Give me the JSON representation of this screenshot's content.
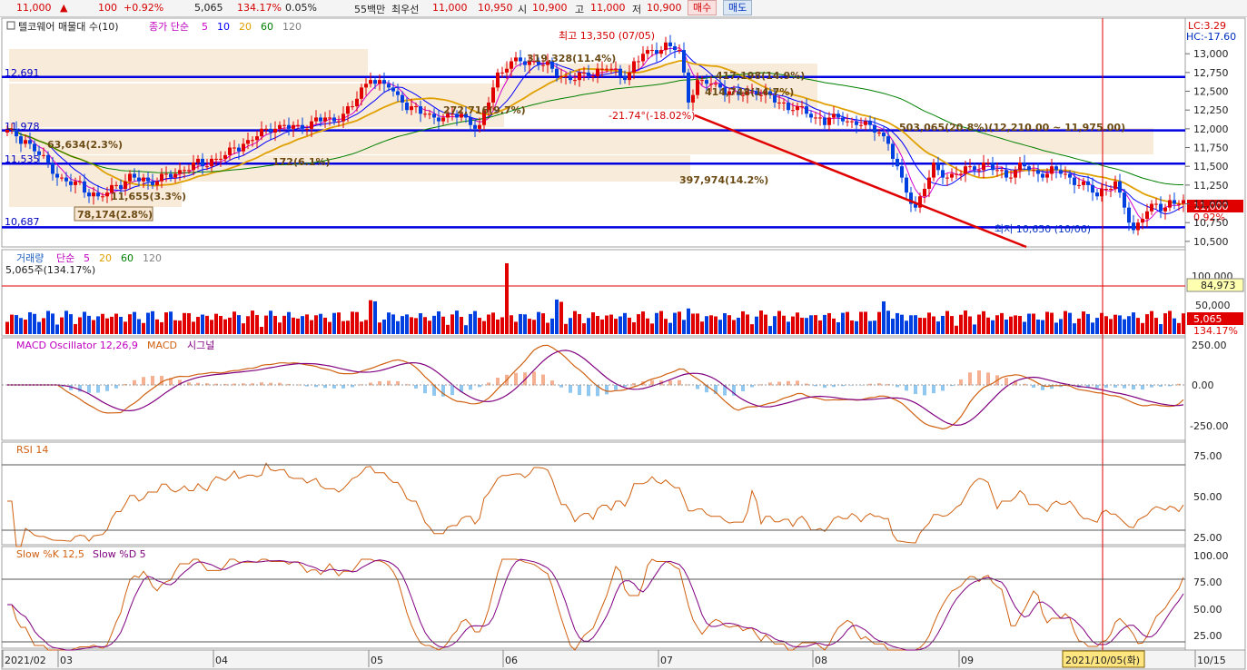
{
  "topbar": {
    "price": "11,000",
    "up_arrow": "▲",
    "change": "100",
    "change_pct": "+0.92%",
    "volume": "5,065",
    "volume_ratio": "134.17%",
    "turnover_pct": "0.05%",
    "unit": "55백만",
    "best_quote_label": "최우선",
    "ask": "11,000",
    "bid": "10,950",
    "open_label": "시",
    "open": "10,900",
    "high_label": "고",
    "high": "11,000",
    "low_label": "저",
    "low": "10,900",
    "buy_button": "매수",
    "sell_button": "매도"
  },
  "price_panel": {
    "legend_name": "텔코웨어 매물대 수(10)",
    "legend_ma": "종가 단순",
    "ma_periods": [
      "5",
      "10",
      "20",
      "60",
      "120"
    ],
    "ma_colors": [
      "#d000d0",
      "#0000ff",
      "#e0a000",
      "#008000",
      "#808080"
    ],
    "lc": "LC:3.29",
    "hc": "HC:-17.60",
    "y_ticks": [
      "13,000",
      "12,750",
      "12,500",
      "12,250",
      "12,000",
      "11,750",
      "11,500",
      "11,250",
      "11,000",
      "10,750",
      "10,500"
    ],
    "current_price_tag": "11,000",
    "current_pct_tag": "0.92%",
    "high_annotation": "최고 13,350 (07/05)",
    "low_annotation": "최저 10,650 (10/06)",
    "trend_annotation": "-21.74°(-18.02%)",
    "hlines": [
      "12,691",
      "11,978",
      "11,535",
      "10,687"
    ],
    "volume_profile_labels": [
      "319,328(11.4%)",
      "417,198(14.9%)",
      "272,716(9.7%)",
      "503,065(20.8%)(12,210.00 ~ 11,975.00)",
      "63,634(2.3%)",
      "172(6.1%)",
      "397,974(14.2%)",
      "11,655(3.3%)",
      "78,174(2.8%)",
      "414,748(14.7%)"
    ]
  },
  "volume_panel": {
    "legend_name": "거래량",
    "legend_ma": "단순",
    "ma_periods": [
      "5",
      "20",
      "60",
      "120"
    ],
    "current": "5,065주(134.17%)",
    "y_ticks": [
      "100,000",
      "50,000"
    ],
    "tag1": "84,973",
    "tag2": "5,065",
    "tag3": "134.17%"
  },
  "macd_panel": {
    "legend_osc": "MACD Oscillator 12,26,9",
    "legend_macd": "MACD",
    "legend_signal": "시그널",
    "y_ticks": [
      "250.00",
      "0.00",
      "-250.00"
    ]
  },
  "rsi_panel": {
    "legend": "RSI 14",
    "y_ticks": [
      "75.00",
      "50.00",
      "25.00"
    ]
  },
  "stoch_panel": {
    "legend_k": "Slow %K 12,5",
    "legend_d": "Slow %D 5",
    "y_ticks": [
      "100.00",
      "75.00",
      "50.00",
      "25.00"
    ]
  },
  "x_axis": {
    "labels": [
      "2021/02",
      "03",
      "04",
      "05",
      "06",
      "07",
      "08",
      "09",
      "10/15"
    ],
    "cursor_label": "2021/10/05(화)"
  },
  "chart_data": {
    "type": "candlestick",
    "price_range": [
      10450,
      13450
    ],
    "months": [
      "2021/02",
      "03",
      "04",
      "05",
      "06",
      "07",
      "08",
      "09",
      "10"
    ],
    "key_levels": [
      12691,
      11978,
      11535,
      10687
    ],
    "high": {
      "value": 13350,
      "date": "07/05"
    },
    "low": {
      "value": 10650,
      "date": "10/06"
    },
    "last_close": 11000,
    "anchors": [
      [
        0,
        11950
      ],
      [
        4,
        11850
      ],
      [
        8,
        11600
      ],
      [
        12,
        11300
      ],
      [
        16,
        11250
      ],
      [
        20,
        11050
      ],
      [
        24,
        11250
      ],
      [
        28,
        11350
      ],
      [
        32,
        11300
      ],
      [
        36,
        11400
      ],
      [
        40,
        11500
      ],
      [
        44,
        11550
      ],
      [
        48,
        11650
      ],
      [
        52,
        11800
      ],
      [
        56,
        11950
      ],
      [
        60,
        12050
      ],
      [
        64,
        12000
      ],
      [
        68,
        12150
      ],
      [
        72,
        12100
      ],
      [
        76,
        12300
      ],
      [
        80,
        12700
      ],
      [
        84,
        12550
      ],
      [
        88,
        12300
      ],
      [
        92,
        12200
      ],
      [
        96,
        12150
      ],
      [
        100,
        12200
      ],
      [
        104,
        12000
      ],
      [
        108,
        12750
      ],
      [
        112,
        12900
      ],
      [
        116,
        12900
      ],
      [
        120,
        12800
      ],
      [
        124,
        12650
      ],
      [
        128,
        12750
      ],
      [
        132,
        12800
      ],
      [
        136,
        12700
      ],
      [
        140,
        13000
      ],
      [
        144,
        13100
      ],
      [
        148,
        13050
      ],
      [
        150,
        12400
      ],
      [
        152,
        12600
      ],
      [
        156,
        12600
      ],
      [
        160,
        12450
      ],
      [
        164,
        12500
      ],
      [
        168,
        12400
      ],
      [
        172,
        12300
      ],
      [
        176,
        12200
      ],
      [
        180,
        12100
      ],
      [
        184,
        12150
      ],
      [
        188,
        12050
      ],
      [
        192,
        12000
      ],
      [
        194,
        11800
      ],
      [
        196,
        11450
      ],
      [
        198,
        11200
      ],
      [
        200,
        10950
      ],
      [
        204,
        11500
      ],
      [
        208,
        11350
      ],
      [
        212,
        11500
      ],
      [
        216,
        11500
      ],
      [
        220,
        11400
      ],
      [
        224,
        11500
      ],
      [
        228,
        11400
      ],
      [
        232,
        11450
      ],
      [
        236,
        11250
      ],
      [
        240,
        11150
      ],
      [
        244,
        11250
      ],
      [
        246,
        10950
      ],
      [
        248,
        10650
      ],
      [
        252,
        10950
      ],
      [
        256,
        11000
      ],
      [
        258,
        11000
      ]
    ]
  }
}
